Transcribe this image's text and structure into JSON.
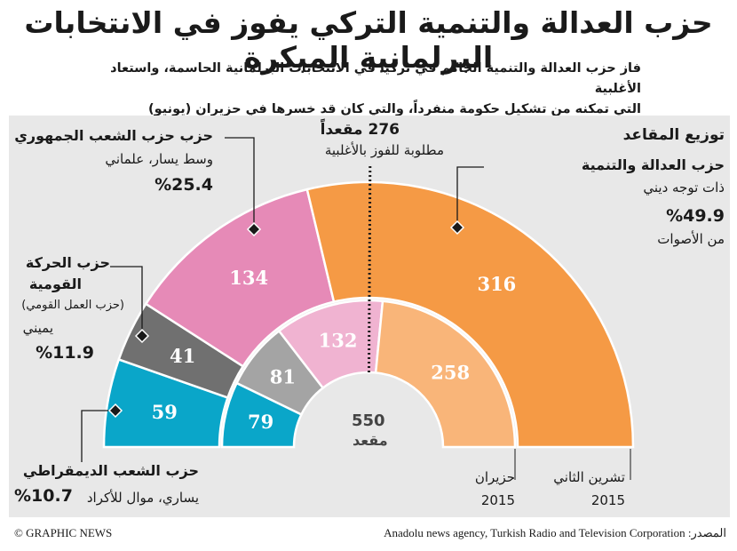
{
  "header": {
    "title": "حزب العدالة والتنمية التركي يفوز في الانتخابات البرلمانية المبكرة",
    "subtitle_line1": "فاز حزب العدالة والتنمية الحاكم في تركيا في الانتخابات البرلمانية الحاسمة، واستعاد الأغلبية",
    "subtitle_line2": "التي تمكنه من تشكيل حكومة منفرداً، والتي كان قد خسرها في حزيران (يونيو)"
  },
  "colors": {
    "akp": "#f59a45",
    "chp": "#e68ab7",
    "mhp": "#707070",
    "hdp": "#0aa6c9",
    "akp_light": "#f9b579",
    "chp_light": "#f0b3d1",
    "mhp_light": "#a4a4a4",
    "hdp_light": "#0aa6c9",
    "panel": "#e8e8e8"
  },
  "labels": {
    "seats_distribution": "توزيع المقاعد",
    "majority_seats": "276 مقعداً",
    "majority_text": "مطلوبة للفوز بالأغلبية",
    "total_number": "550",
    "total_word": "مقعد",
    "nov_month": "تشرين الثاني",
    "nov_year": "2015",
    "jun_month": "حزيران",
    "jun_year": "2015"
  },
  "parties": {
    "akp": {
      "name": "حزب العدالة والتنمية",
      "desc": "ذات توجه ديني",
      "pct": "%49.9",
      "pct_note": "من الأصوات"
    },
    "chp": {
      "name": "حزب حزب الشعب الجمهوري",
      "desc": "وسط يسار، علماني",
      "pct": "%25.4"
    },
    "mhp": {
      "name1": "حزب الحركة",
      "name2": "القومية",
      "desc1": "(حزب العمل القومي)",
      "desc2": "يميني",
      "pct": "%11.9"
    },
    "hdp": {
      "name": "حزب الشعب الديمقراطي",
      "desc": "يساري، موال للأكراد",
      "pct": "%10.7"
    }
  },
  "chart_data": {
    "type": "pie",
    "subtype": "semicircle-parliament",
    "total_seats": 550,
    "majority_line": 276,
    "order_left_to_right": [
      "HDP",
      "MHP",
      "CHP",
      "AKP"
    ],
    "series": [
      {
        "name": "تشرين الثاني 2015",
        "values": {
          "HDP": 59,
          "MHP": 41,
          "CHP": 134,
          "AKP": 316
        }
      },
      {
        "name": "حزيران 2015",
        "values": {
          "HDP": 79,
          "MHP": 81,
          "CHP": 132,
          "AKP": 258
        }
      }
    ],
    "vote_share_nov": {
      "AKP": 49.9,
      "CHP": 25.4,
      "MHP": 11.9,
      "HDP": 10.7
    }
  },
  "footer": {
    "credit": "© GRAPHIC NEWS",
    "source": "المصدر: Anadolu news agency, Turkish Radio and Television Corporation"
  }
}
